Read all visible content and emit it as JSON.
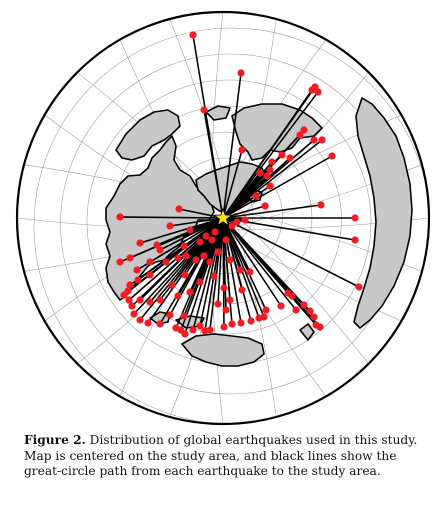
{
  "caption": {
    "label": "Figure 2.",
    "text": " Distribution of global earthquakes used in this study. Map is centered on the study area, and black lines show the great-circle path from each earthquake to the study area."
  },
  "colors": {
    "land": "#c8c8c8",
    "coast": "#000000",
    "graticule": "#9a9a9a",
    "path": "#000000",
    "event": "#ee1c24",
    "station": "#ffe600"
  },
  "icons": {
    "station": "star-icon",
    "event": "circle-dot-icon"
  },
  "map": {
    "projection": "azimuthal-equidistant",
    "center": "study-area",
    "graticule": true
  }
}
